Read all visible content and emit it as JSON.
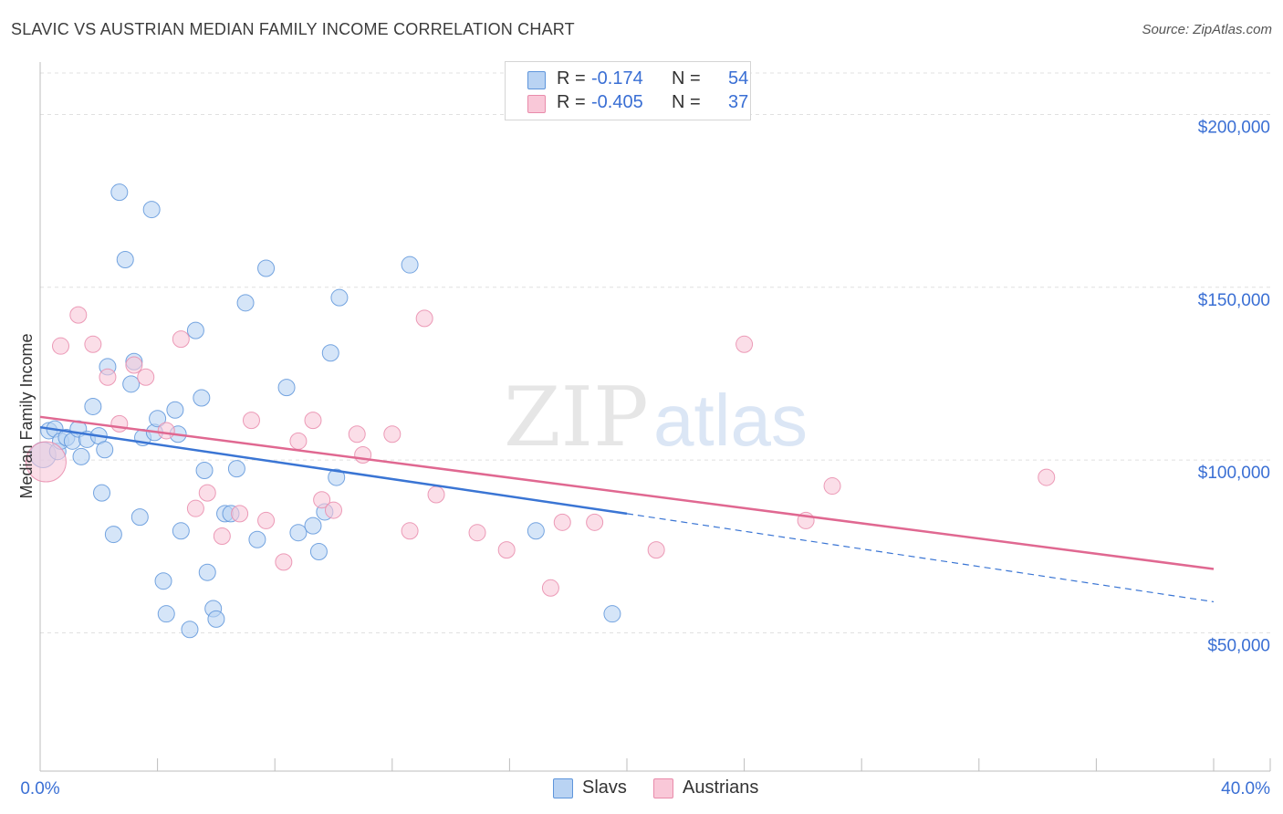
{
  "title": "SLAVIC VS AUSTRIAN MEDIAN FAMILY INCOME CORRELATION CHART",
  "source": "Source: ZipAtlas.com",
  "watermark": {
    "zip": "ZIP",
    "atlas": "atlas"
  },
  "legend": {
    "rows": [
      {
        "r_label": "R =",
        "r_value": "-0.174",
        "n_label": "N =",
        "n_value": "54"
      },
      {
        "r_label": "R =",
        "r_value": "-0.405",
        "n_label": "N =",
        "n_value": "37"
      }
    ]
  },
  "colors": {
    "slavs_fill": "#b9d3f3",
    "slavs_stroke": "#5e95db",
    "slavs_line": "#3a75d4",
    "austrians_fill": "#f9c8d8",
    "austrians_stroke": "#e98bab",
    "austrians_line": "#e06891",
    "axis_label": "#3a6fd4",
    "grid": "#e0e0e0"
  },
  "chart_data": {
    "type": "scatter",
    "title": "SLAVIC VS AUSTRIAN MEDIAN FAMILY INCOME CORRELATION CHART",
    "xlabel": "",
    "ylabel": "Median Family Income",
    "xlim": [
      0,
      40
    ],
    "ylim": [
      10000,
      212000
    ],
    "x_tick_labels": [
      "0.0%",
      "40.0%"
    ],
    "y_ticks": [
      50000,
      100000,
      150000,
      200000
    ],
    "y_tick_labels": [
      "$50,000",
      "$100,000",
      "$150,000",
      "$200,000"
    ],
    "series": [
      {
        "name": "Slavs",
        "r": -0.174,
        "n": 54,
        "trend": {
          "x": [
            0,
            20
          ],
          "y": [
            109500,
            84500
          ],
          "dashed_x": [
            20,
            40
          ],
          "dashed_y": [
            84500,
            59000
          ]
        },
        "points": [
          [
            0.1,
            101500
          ],
          [
            0.3,
            108500
          ],
          [
            0.5,
            109000
          ],
          [
            0.6,
            102500
          ],
          [
            0.7,
            105500
          ],
          [
            0.9,
            106500
          ],
          [
            1.1,
            105500
          ],
          [
            1.3,
            109000
          ],
          [
            1.4,
            101000
          ],
          [
            1.6,
            106000
          ],
          [
            1.8,
            115500
          ],
          [
            2.0,
            107000
          ],
          [
            2.1,
            90500
          ],
          [
            2.2,
            103000
          ],
          [
            2.3,
            127000
          ],
          [
            2.5,
            78500
          ],
          [
            2.7,
            177500
          ],
          [
            2.9,
            158000
          ],
          [
            3.1,
            122000
          ],
          [
            3.2,
            128500
          ],
          [
            3.4,
            83500
          ],
          [
            3.5,
            106500
          ],
          [
            3.8,
            172500
          ],
          [
            3.9,
            108000
          ],
          [
            4.0,
            112000
          ],
          [
            4.2,
            65000
          ],
          [
            4.3,
            55500
          ],
          [
            4.6,
            114500
          ],
          [
            4.7,
            107500
          ],
          [
            4.8,
            79500
          ],
          [
            5.1,
            51000
          ],
          [
            5.3,
            137500
          ],
          [
            5.5,
            118000
          ],
          [
            5.6,
            97000
          ],
          [
            5.7,
            67500
          ],
          [
            5.9,
            57000
          ],
          [
            6.0,
            54000
          ],
          [
            6.3,
            84500
          ],
          [
            6.5,
            84500
          ],
          [
            6.7,
            97500
          ],
          [
            7.0,
            145500
          ],
          [
            7.4,
            77000
          ],
          [
            7.7,
            155500
          ],
          [
            8.4,
            121000
          ],
          [
            8.8,
            79000
          ],
          [
            9.3,
            81000
          ],
          [
            9.5,
            73500
          ],
          [
            9.7,
            85000
          ],
          [
            9.9,
            131000
          ],
          [
            10.1,
            95000
          ],
          [
            10.2,
            147000
          ],
          [
            12.6,
            156500
          ],
          [
            16.9,
            79500
          ],
          [
            19.5,
            55500
          ]
        ]
      },
      {
        "name": "Austrians",
        "r": -0.405,
        "n": 37,
        "trend": {
          "x": [
            0,
            40
          ],
          "y": [
            112500,
            68500
          ]
        },
        "points": [
          [
            0.2,
            99500
          ],
          [
            0.7,
            133000
          ],
          [
            1.3,
            142000
          ],
          [
            1.8,
            133500
          ],
          [
            2.3,
            124000
          ],
          [
            2.7,
            110500
          ],
          [
            3.2,
            127500
          ],
          [
            3.6,
            124000
          ],
          [
            4.3,
            108500
          ],
          [
            4.8,
            135000
          ],
          [
            5.3,
            86000
          ],
          [
            5.7,
            90500
          ],
          [
            6.2,
            78000
          ],
          [
            6.8,
            84500
          ],
          [
            7.2,
            111500
          ],
          [
            7.7,
            82500
          ],
          [
            8.3,
            70500
          ],
          [
            8.8,
            105500
          ],
          [
            9.3,
            111500
          ],
          [
            9.6,
            88500
          ],
          [
            10.0,
            85500
          ],
          [
            10.8,
            107500
          ],
          [
            11.0,
            101500
          ],
          [
            12.0,
            107500
          ],
          [
            12.6,
            79500
          ],
          [
            13.1,
            141000
          ],
          [
            13.5,
            90000
          ],
          [
            14.9,
            79000
          ],
          [
            15.9,
            74000
          ],
          [
            17.4,
            63000
          ],
          [
            17.8,
            82000
          ],
          [
            18.9,
            82000
          ],
          [
            21.0,
            74000
          ],
          [
            24.0,
            133500
          ],
          [
            26.1,
            82500
          ],
          [
            27.0,
            92500
          ],
          [
            34.3,
            95000
          ]
        ]
      }
    ]
  },
  "bottom_legend": {
    "slavs": "Slavs",
    "austrians": "Austrians"
  }
}
